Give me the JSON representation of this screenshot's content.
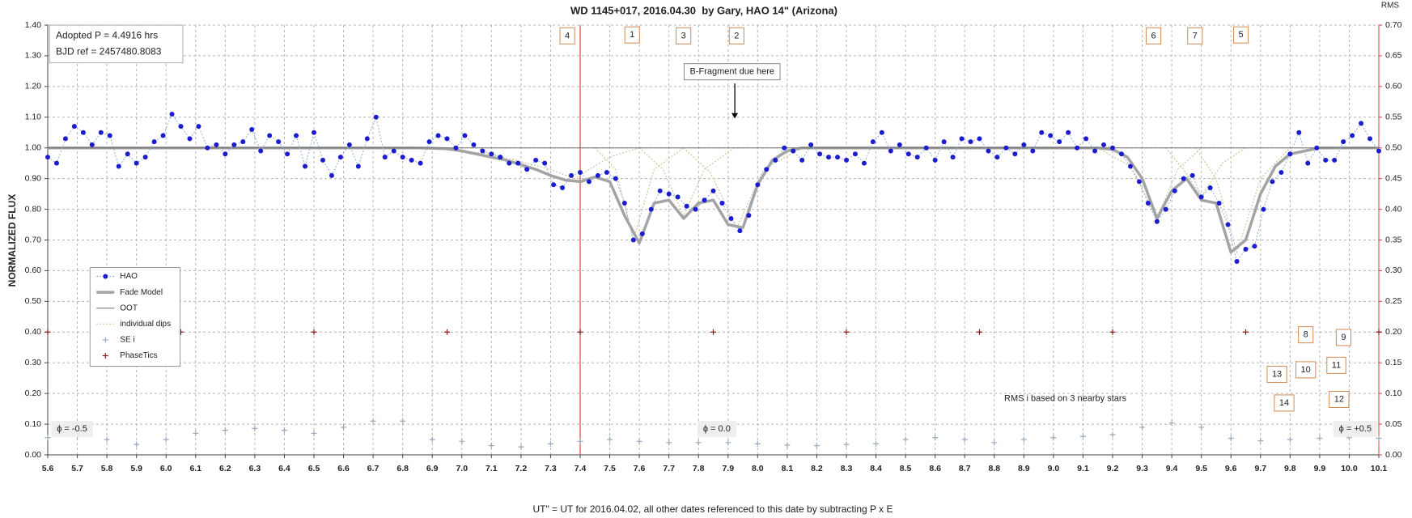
{
  "chart_data": {
    "type": "line",
    "title": "WD 1145+017, 2016.04.30  by Gary, HAO 14\" (Arizona)",
    "x_label": "UT\" = UT for 2016.04.02, all other dates referenced to this date by subtracting P x E",
    "y_label": "NORMALIZED FLUX",
    "y2_label": "RMS",
    "xlim": [
      5.6,
      10.1
    ],
    "ylim": [
      0,
      1.4
    ],
    "y2lim": [
      0,
      0.7
    ],
    "grid": true,
    "reference_x": 7.4,
    "xticks": [
      5.6,
      5.7,
      5.8,
      5.9,
      {
        "value": 6,
        "label": "6.0"
      },
      6.1,
      6.2,
      6.3,
      6.4,
      6.5,
      6.6,
      6.7,
      6.8,
      6.9,
      {
        "value": 7,
        "label": "7.0"
      },
      7.1,
      7.2,
      7.3,
      7.4,
      7.5,
      7.6,
      7.7,
      7.8,
      7.9,
      {
        "value": 8,
        "label": "8.0"
      },
      8.1,
      8.2,
      8.3,
      8.4,
      8.5,
      8.6,
      8.7,
      8.8,
      8.9,
      {
        "value": 9,
        "label": "9.0"
      },
      9.1,
      9.2,
      9.3,
      9.4,
      9.5,
      9.6,
      9.7,
      9.8,
      9.9,
      {
        "value": 10,
        "label": "10.0"
      },
      10.1
    ],
    "yticks": [
      {
        "value": 0,
        "label": "0.00"
      },
      {
        "value": 0.1,
        "label": "0.10"
      },
      {
        "value": 0.2,
        "label": "0.20"
      },
      {
        "value": 0.3,
        "label": "0.30"
      },
      {
        "value": 0.4,
        "label": "0.40"
      },
      {
        "value": 0.5,
        "label": "0.50"
      },
      {
        "value": 0.6,
        "label": "0.60"
      },
      {
        "value": 0.7,
        "label": "0.70"
      },
      {
        "value": 0.8,
        "label": "0.80"
      },
      {
        "value": 0.9,
        "label": "0.90"
      },
      {
        "value": 1,
        "label": "1.00"
      },
      {
        "value": 1.1,
        "label": "1.10"
      },
      {
        "value": 1.2,
        "label": "1.20"
      },
      {
        "value": 1.3,
        "label": "1.30"
      },
      {
        "value": 1.4,
        "label": "1.40"
      }
    ],
    "y2ticks": [
      {
        "value": 0,
        "label": "0.00"
      },
      {
        "value": 0.05,
        "label": "0.05"
      },
      {
        "value": 0.1,
        "label": "0.10"
      },
      {
        "value": 0.15,
        "label": "0.15"
      },
      {
        "value": 0.2,
        "label": "0.20"
      },
      {
        "value": 0.25,
        "label": "0.25"
      },
      {
        "value": 0.3,
        "label": "0.30"
      },
      {
        "value": 0.35,
        "label": "0.35"
      },
      {
        "value": 0.4,
        "label": "0.40"
      },
      {
        "value": 0.45,
        "label": "0.45"
      },
      {
        "value": 0.5,
        "label": "0.50"
      },
      {
        "value": 0.55,
        "label": "0.55"
      },
      {
        "value": 0.6,
        "label": "0.60"
      },
      {
        "value": 0.65,
        "label": "0.65"
      },
      {
        "value": 0.7,
        "label": "0.70"
      }
    ],
    "series": [
      {
        "name": "HAO",
        "style": "dots",
        "color": "#1c1ccf",
        "line_color": "#8fb0d8",
        "x": [
          5.6,
          5.63,
          5.66,
          5.69,
          5.72,
          5.75,
          5.78,
          5.81,
          5.84,
          5.87,
          5.9,
          5.93,
          5.96,
          5.99,
          6.02,
          6.05,
          6.08,
          6.11,
          6.14,
          6.17,
          6.2,
          6.23,
          6.26,
          6.29,
          6.32,
          6.35,
          6.38,
          6.41,
          6.44,
          6.47,
          6.5,
          6.53,
          6.56,
          6.59,
          6.62,
          6.65,
          6.68,
          6.71,
          6.74,
          6.77,
          6.8,
          6.83,
          6.86,
          6.89,
          6.92,
          6.95,
          6.98,
          7.01,
          7.04,
          7.07,
          7.1,
          7.13,
          7.16,
          7.19,
          7.22,
          7.25,
          7.28,
          7.31,
          7.34,
          7.37,
          7.4,
          7.43,
          7.46,
          7.49,
          7.52,
          7.55,
          7.58,
          7.61,
          7.64,
          7.67,
          7.7,
          7.73,
          7.76,
          7.79,
          7.82,
          7.85,
          7.88,
          7.91,
          7.94,
          7.97,
          8.0,
          8.03,
          8.06,
          8.09,
          8.12,
          8.15,
          8.18,
          8.21,
          8.24,
          8.27,
          8.3,
          8.33,
          8.36,
          8.39,
          8.42,
          8.45,
          8.48,
          8.51,
          8.54,
          8.57,
          8.6,
          8.63,
          8.66,
          8.69,
          8.72,
          8.75,
          8.78,
          8.81,
          8.84,
          8.87,
          8.9,
          8.93,
          8.96,
          8.99,
          9.02,
          9.05,
          9.08,
          9.11,
          9.14,
          9.17,
          9.2,
          9.23,
          9.26,
          9.29,
          9.32,
          9.35,
          9.38,
          9.41,
          9.44,
          9.47,
          9.5,
          9.53,
          9.56,
          9.59,
          9.62,
          9.65,
          9.68,
          9.71,
          9.74,
          9.77,
          9.8,
          9.83,
          9.86,
          9.89,
          9.92,
          9.95,
          9.98,
          10.01,
          10.04,
          10.07,
          10.1
        ],
        "values": [
          0.97,
          0.95,
          1.03,
          1.07,
          1.05,
          1.01,
          1.05,
          1.04,
          0.94,
          0.98,
          0.95,
          0.97,
          1.02,
          1.04,
          1.11,
          1.07,
          1.03,
          1.07,
          1.0,
          1.01,
          0.98,
          1.01,
          1.02,
          1.06,
          0.99,
          1.04,
          1.02,
          0.98,
          1.04,
          0.94,
          1.05,
          0.96,
          0.91,
          0.97,
          1.01,
          0.94,
          1.03,
          1.1,
          0.97,
          0.99,
          0.97,
          0.96,
          0.95,
          1.02,
          1.04,
          1.03,
          1.0,
          1.04,
          1.01,
          0.99,
          0.98,
          0.97,
          0.95,
          0.95,
          0.93,
          0.96,
          0.95,
          0.88,
          0.87,
          0.91,
          0.92,
          0.89,
          0.91,
          0.92,
          0.9,
          0.82,
          0.7,
          0.72,
          0.8,
          0.86,
          0.85,
          0.84,
          0.81,
          0.8,
          0.83,
          0.86,
          0.82,
          0.77,
          0.73,
          0.78,
          0.88,
          0.93,
          0.96,
          1.0,
          0.99,
          0.96,
          1.01,
          0.98,
          0.97,
          0.97,
          0.96,
          0.98,
          0.95,
          1.02,
          1.05,
          0.99,
          1.01,
          0.98,
          0.97,
          1.0,
          0.96,
          1.02,
          0.97,
          1.03,
          1.02,
          1.03,
          0.99,
          0.97,
          1.0,
          0.98,
          1.01,
          0.99,
          1.05,
          1.04,
          1.02,
          1.05,
          1.0,
          1.03,
          0.99,
          1.01,
          1.0,
          0.98,
          0.94,
          0.89,
          0.82,
          0.76,
          0.8,
          0.86,
          0.9,
          0.91,
          0.84,
          0.87,
          0.82,
          0.75,
          0.63,
          0.67,
          0.68,
          0.8,
          0.89,
          0.92,
          0.98,
          1.05,
          0.95,
          1.0,
          0.96,
          0.96,
          1.02,
          1.04,
          1.08,
          1.03,
          0.99
        ]
      },
      {
        "name": "Fade Model",
        "style": "line",
        "color": "#a3a3a3",
        "width": 3.5,
        "x": [
          5.6,
          5.65,
          5.7,
          5.75,
          5.8,
          5.85,
          5.9,
          5.95,
          6.0,
          6.05,
          6.1,
          6.15,
          6.2,
          6.25,
          6.3,
          6.35,
          6.4,
          6.45,
          6.5,
          6.55,
          6.6,
          6.65,
          6.7,
          6.75,
          6.8,
          6.85,
          6.9,
          6.95,
          7.0,
          7.05,
          7.1,
          7.15,
          7.2,
          7.25,
          7.3,
          7.35,
          7.4,
          7.45,
          7.5,
          7.55,
          7.6,
          7.65,
          7.7,
          7.75,
          7.8,
          7.85,
          7.9,
          7.95,
          8.0,
          8.05,
          8.1,
          8.15,
          8.2,
          8.25,
          8.3,
          8.35,
          8.4,
          8.45,
          8.5,
          8.55,
          8.6,
          8.65,
          8.7,
          8.75,
          8.8,
          8.85,
          8.9,
          8.95,
          9.0,
          9.05,
          9.1,
          9.15,
          9.2,
          9.25,
          9.3,
          9.35,
          9.4,
          9.45,
          9.5,
          9.55,
          9.6,
          9.65,
          9.7,
          9.75,
          9.8,
          9.85,
          9.9,
          9.95,
          10.0,
          10.05,
          10.1
        ],
        "values": [
          1,
          1,
          1,
          1,
          1,
          1,
          1,
          1,
          1,
          1,
          1,
          1,
          1,
          1,
          1,
          1,
          1,
          1,
          1,
          1,
          1,
          1,
          1,
          1,
          1,
          1,
          0.999,
          0.997,
          0.99,
          0.98,
          0.97,
          0.96,
          0.945,
          0.93,
          0.91,
          0.895,
          0.89,
          0.905,
          0.89,
          0.78,
          0.69,
          0.82,
          0.83,
          0.77,
          0.82,
          0.83,
          0.75,
          0.74,
          0.88,
          0.96,
          0.99,
          1,
          1,
          1,
          1,
          1,
          1,
          1,
          1,
          1,
          1,
          1,
          1,
          1,
          1,
          1,
          1,
          1,
          1,
          1,
          1,
          1,
          0.995,
          0.97,
          0.9,
          0.77,
          0.86,
          0.9,
          0.83,
          0.82,
          0.66,
          0.7,
          0.85,
          0.94,
          0.98,
          0.99,
          1,
          1,
          1,
          1,
          1
        ]
      },
      {
        "name": "OOT",
        "style": "line",
        "color": "#6e6e6e",
        "width": 1,
        "x": [
          5.6,
          10.1
        ],
        "values": [
          1,
          1
        ]
      },
      {
        "name": "individual dips",
        "style": "dotted",
        "color": "#c9c99a",
        "width": 1.2,
        "x": [
          6.9,
          7.1,
          7.3,
          7.38,
          7.5,
          7.6,
          null,
          7.45,
          7.52,
          7.58,
          7.65,
          7.75,
          null,
          7.6,
          7.68,
          7.75,
          7.82,
          7.92,
          null,
          7.75,
          7.84,
          7.93,
          8.02,
          8.15,
          null,
          9.15,
          9.26,
          9.35,
          9.42,
          9.5,
          null,
          9.38,
          9.44,
          9.5,
          9.57,
          9.65,
          null,
          9.48,
          9.55,
          9.62,
          9.7,
          9.8
        ],
        "values": [
          1,
          0.98,
          0.93,
          0.9,
          0.97,
          1,
          null,
          1,
          0.93,
          0.7,
          0.93,
          1,
          null,
          1,
          0.93,
          0.78,
          0.93,
          1,
          null,
          1,
          0.92,
          0.74,
          0.93,
          1,
          null,
          1,
          0.94,
          0.77,
          0.93,
          1,
          null,
          1,
          0.93,
          0.84,
          0.95,
          1,
          null,
          1,
          0.9,
          0.66,
          0.9,
          1
        ]
      },
      {
        "name": "SE i",
        "style": "plus",
        "color": "#9aabbd",
        "axis": "y2",
        "x": [
          5.6,
          5.7,
          5.8,
          5.9,
          6.0,
          6.1,
          6.2,
          6.3,
          6.4,
          6.5,
          6.6,
          6.7,
          6.8,
          6.9,
          7.0,
          7.1,
          7.2,
          7.3,
          7.4,
          7.5,
          7.6,
          7.7,
          7.8,
          7.9,
          8.0,
          8.1,
          8.2,
          8.3,
          8.4,
          8.5,
          8.6,
          8.7,
          8.8,
          8.9,
          9.0,
          9.1,
          9.2,
          9.3,
          9.4,
          9.5,
          9.6,
          9.7,
          9.8,
          9.9,
          10.0,
          10.1
        ],
        "values": [
          0.028,
          0.03,
          0.025,
          0.017,
          0.025,
          0.035,
          0.04,
          0.043,
          0.04,
          0.035,
          0.045,
          0.055,
          0.055,
          0.025,
          0.022,
          0.015,
          0.013,
          0.018,
          0.022,
          0.025,
          0.022,
          0.02,
          0.02,
          0.02,
          0.018,
          0.016,
          0.015,
          0.017,
          0.018,
          0.025,
          0.028,
          0.025,
          0.02,
          0.025,
          0.028,
          0.03,
          0.033,
          0.045,
          0.052,
          0.045,
          0.027,
          0.023,
          0.025,
          0.027,
          0.028,
          0.027
        ]
      },
      {
        "name": "PhaseTics",
        "style": "plus",
        "color": "#8b1a1a",
        "x": [
          5.6,
          6.05,
          6.5,
          6.95,
          7.4,
          7.85,
          8.3,
          8.75,
          9.2,
          9.65,
          10.1
        ],
        "values": [
          0.4,
          0.4,
          0.4,
          0.4,
          0.4,
          0.4,
          0.4,
          0.4,
          0.4,
          0.4,
          0.4
        ]
      }
    ],
    "annotations": [
      "Adopted P = 4.4916 hrs",
      "BJD ref = 2457480.8083",
      "4",
      "1",
      "3",
      "2",
      "6",
      "7",
      "5",
      "8",
      "9",
      "10",
      "11",
      "12",
      "13",
      "14",
      "B-Fragment due here",
      "ϕ = -0.5",
      "ϕ = 0.0",
      "ϕ = +0.5",
      "RMS i based on 3 nearby stars"
    ]
  }
}
